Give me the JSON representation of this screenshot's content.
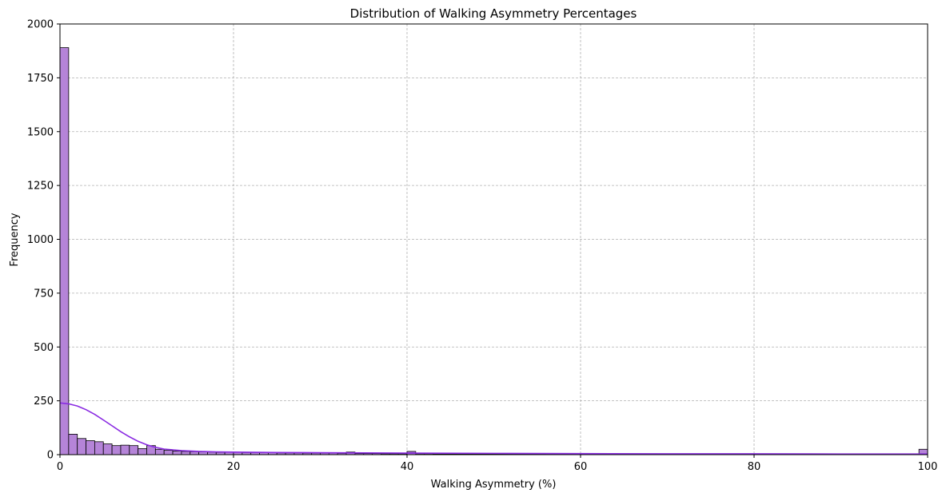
{
  "chart_data": {
    "type": "bar",
    "title": "Distribution of Walking Asymmetry Percentages",
    "xlabel": "Walking Asymmetry (%)",
    "ylabel": "Frequency",
    "xlim": [
      0,
      100
    ],
    "ylim": [
      0,
      2000
    ],
    "xticks": [
      0,
      20,
      40,
      60,
      80,
      100
    ],
    "yticks": [
      0,
      250,
      500,
      750,
      1000,
      1250,
      1500,
      1750,
      2000
    ],
    "grid": true,
    "bar_color": "#b584d8",
    "kde_color": "#8a2be2",
    "bin_width": 1,
    "bin_starts": [
      0,
      1,
      2,
      3,
      4,
      5,
      6,
      7,
      8,
      9,
      10,
      11,
      12,
      13,
      14,
      15,
      16,
      17,
      18,
      19,
      20,
      21,
      22,
      23,
      24,
      25,
      26,
      27,
      28,
      29,
      30,
      31,
      32,
      33,
      34,
      35,
      36,
      37,
      38,
      39,
      40,
      41,
      42,
      43,
      44,
      45,
      46,
      47,
      48,
      49,
      50,
      51,
      52,
      53,
      54,
      55,
      56,
      57,
      58,
      59,
      60,
      61,
      62,
      63,
      64,
      65,
      66,
      67,
      68,
      69,
      70,
      71,
      72,
      73,
      74,
      75,
      76,
      77,
      78,
      79,
      80,
      81,
      82,
      83,
      84,
      85,
      86,
      87,
      88,
      89,
      90,
      91,
      92,
      93,
      94,
      95,
      96,
      97,
      98,
      99
    ],
    "values": [
      1890,
      95,
      75,
      65,
      60,
      50,
      42,
      44,
      42,
      28,
      42,
      25,
      20,
      17,
      15,
      14,
      13,
      12,
      11,
      11,
      11,
      10,
      10,
      9,
      9,
      8,
      8,
      8,
      7,
      7,
      7,
      7,
      6,
      12,
      5,
      5,
      5,
      4,
      4,
      4,
      15,
      4,
      4,
      3,
      3,
      3,
      3,
      3,
      3,
      3,
      3,
      3,
      3,
      3,
      3,
      3,
      2,
      2,
      2,
      2,
      2,
      2,
      2,
      2,
      2,
      2,
      2,
      2,
      2,
      2,
      2,
      2,
      2,
      2,
      2,
      2,
      2,
      2,
      2,
      2,
      4,
      2,
      2,
      2,
      2,
      2,
      2,
      2,
      2,
      2,
      2,
      2,
      2,
      2,
      2,
      2,
      2,
      2,
      2,
      25
    ],
    "kde": {
      "x": [
        0,
        1,
        2,
        3,
        4,
        5,
        6,
        7,
        8,
        9,
        10,
        11,
        12,
        14,
        16,
        18,
        20,
        25,
        30,
        35,
        40,
        50,
        60,
        70,
        80,
        90,
        100
      ],
      "y": [
        240,
        236,
        226,
        209,
        187,
        161,
        134,
        107,
        83,
        62,
        46,
        34,
        26,
        19,
        15,
        13,
        12,
        10,
        9,
        8,
        7,
        6,
        5,
        4,
        4,
        3,
        3
      ]
    }
  }
}
